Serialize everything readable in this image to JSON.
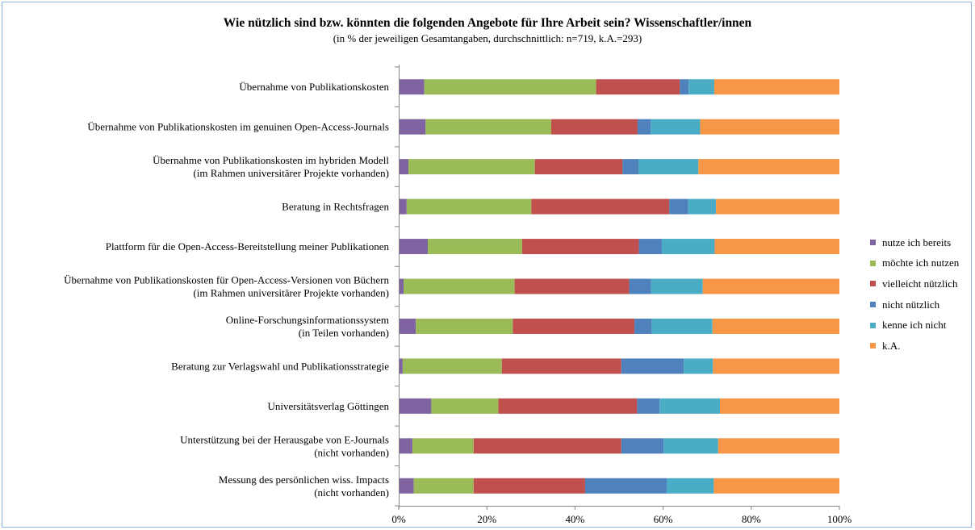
{
  "chart_data": {
    "type": "bar",
    "orientation": "horizontal",
    "stacked": "percent",
    "title": "Wie nützlich sind bzw. könnten die folgenden Angebote für Ihre Arbeit sein? Wissenschaftler/innen",
    "subtitle": "(in % der jeweiligen Gesamtangaben,  durchschnittlich: n=719, k.A.=293)",
    "xlabel": "",
    "ylabel": "",
    "xlim": [
      0,
      100
    ],
    "x_ticks": [
      "0%",
      "20%",
      "40%",
      "60%",
      "80%",
      "100%"
    ],
    "grid": false,
    "legend_position": "right",
    "categories": [
      [
        "Übernahme von Publikationskosten"
      ],
      [
        "Übernahme von Publikationskosten im genuinen Open-Access-Journals"
      ],
      [
        "Übernahme von Publikationskosten im hybriden Modell",
        "(im Rahmen universitärer Projekte vorhanden)"
      ],
      [
        "Beratung in Rechtsfragen"
      ],
      [
        "Plattform für die Open-Access-Bereitstellung meiner Publikationen"
      ],
      [
        "Übernahme von Publikationskosten für Open-Access-Versionen von Büchern",
        "(im Rahmen universitärer Projekte vorhanden)"
      ],
      [
        "Online-Forschungsinformationssystem",
        "(in Teilen vorhanden)"
      ],
      [
        "Beratung zur Verlagswahl und Publikationsstrategie"
      ],
      [
        "Universitätsverlag Göttingen"
      ],
      [
        "Unterstützung bei der Herausgabe von E-Journals",
        "(nicht vorhanden)"
      ],
      [
        "Messung des persönlichen wiss. Impacts",
        "(nicht vorhanden)"
      ]
    ],
    "series": [
      {
        "name": "nutze ich bereits",
        "color": "#8064a2",
        "values": [
          5.8,
          6.1,
          2.2,
          1.8,
          6.6,
          1.1,
          3.9,
          0.9,
          7.4,
          3.1,
          3.4
        ]
      },
      {
        "name": "möchte ich nutzen",
        "color": "#9bbb59",
        "values": [
          39.0,
          28.5,
          28.7,
          28.3,
          21.4,
          25.2,
          22.0,
          22.5,
          15.2,
          13.9,
          13.6
        ]
      },
      {
        "name": "vielleicht nützlich",
        "color": "#c0504d",
        "values": [
          19.0,
          19.6,
          19.9,
          31.3,
          26.5,
          26.0,
          27.6,
          27.1,
          31.5,
          33.5,
          25.3
        ]
      },
      {
        "name": "nicht nützlich",
        "color": "#4f81bd",
        "values": [
          2.0,
          3.0,
          3.6,
          4.3,
          5.2,
          5.0,
          3.9,
          14.2,
          5.1,
          9.6,
          18.5
        ]
      },
      {
        "name": "kenne ich nicht",
        "color": "#4bacc6",
        "values": [
          5.8,
          11.2,
          13.6,
          6.3,
          12.0,
          11.7,
          13.8,
          6.6,
          13.7,
          12.4,
          10.7
        ]
      },
      {
        "name": "k.A.",
        "color": "#f79646",
        "values": [
          28.4,
          31.6,
          32.0,
          28.0,
          28.3,
          31.0,
          28.8,
          28.7,
          27.1,
          27.5,
          28.5
        ]
      }
    ]
  }
}
